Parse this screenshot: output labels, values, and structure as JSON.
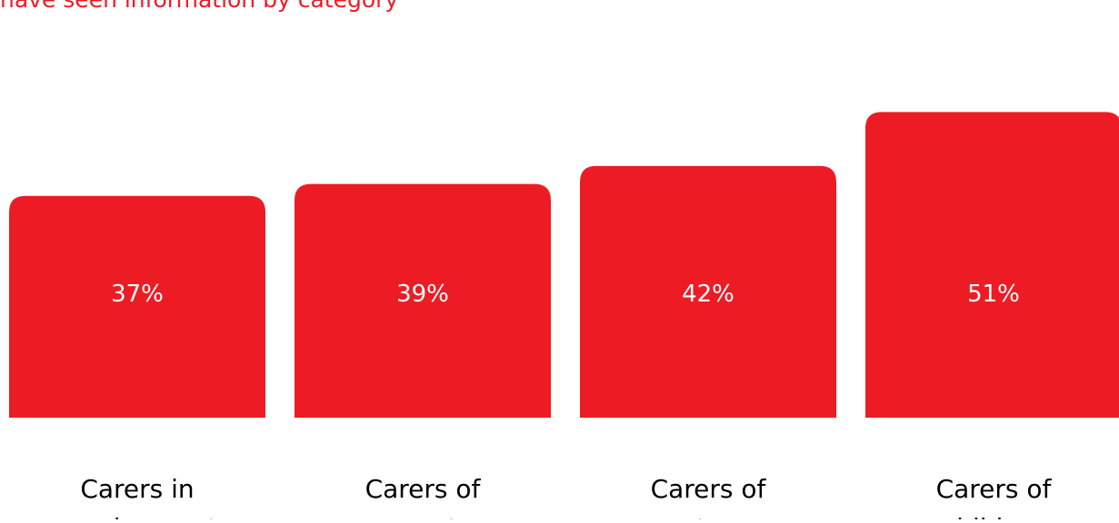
{
  "chart_data": {
    "type": "bar",
    "title": "have seen information by category",
    "categories": [
      [
        "Carers in",
        "employment"
      ],
      [
        "Carers of",
        "parents"
      ],
      [
        "Carers of",
        "partners"
      ],
      [
        "Carers of",
        "children"
      ]
    ],
    "values": [
      37,
      39,
      42,
      51
    ],
    "value_labels": [
      "37%",
      "39%",
      "42%",
      "51%"
    ],
    "unit": "%",
    "grid": false,
    "legend": "none",
    "colors": {
      "bar": "#ED1C24",
      "title": "#ED1C24",
      "label_on_bar": "#ffffff",
      "category_label": "#000000"
    }
  }
}
